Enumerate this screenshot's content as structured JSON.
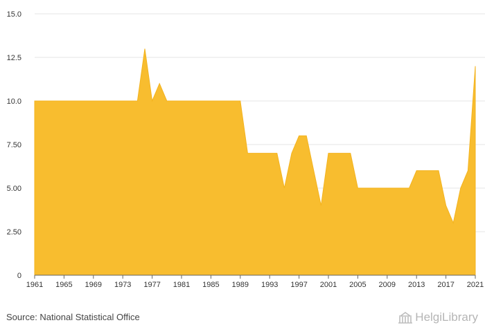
{
  "chart_data": {
    "type": "area",
    "title": "",
    "xlabel": "",
    "ylabel": "",
    "x": [
      1961,
      1962,
      1963,
      1964,
      1965,
      1966,
      1967,
      1968,
      1969,
      1970,
      1971,
      1972,
      1973,
      1974,
      1975,
      1976,
      1977,
      1978,
      1979,
      1980,
      1981,
      1982,
      1983,
      1984,
      1985,
      1986,
      1987,
      1988,
      1989,
      1990,
      1991,
      1992,
      1993,
      1994,
      1995,
      1996,
      1997,
      1998,
      1999,
      2000,
      2001,
      2002,
      2003,
      2004,
      2005,
      2006,
      2007,
      2008,
      2009,
      2010,
      2011,
      2012,
      2013,
      2014,
      2015,
      2016,
      2017,
      2018,
      2019,
      2020,
      2021
    ],
    "series": [
      {
        "name": "Value",
        "values": [
          10,
          10,
          10,
          10,
          10,
          10,
          10,
          10,
          10,
          10,
          10,
          10,
          10,
          10,
          10,
          13,
          10,
          11,
          10,
          10,
          10,
          10,
          10,
          10,
          10,
          10,
          10,
          10,
          10,
          7,
          7,
          7,
          7,
          7,
          5,
          7,
          8,
          8,
          6,
          4,
          7,
          7,
          7,
          7,
          5,
          5,
          5,
          5,
          5,
          5,
          5,
          5,
          6,
          6,
          6,
          6,
          4,
          3,
          5,
          6,
          12
        ],
        "color": "#f8bd2f"
      }
    ],
    "ylim": [
      0,
      15
    ],
    "yticks": [
      0,
      2.5,
      5,
      7.5,
      10,
      12.5,
      15
    ],
    "ytick_labels": [
      "0",
      "2.50",
      "5.00",
      "7.50",
      "10.0",
      "12.5",
      "15.0"
    ],
    "xticks": [
      1961,
      1965,
      1969,
      1973,
      1977,
      1981,
      1985,
      1989,
      1993,
      1997,
      2001,
      2005,
      2009,
      2013,
      2017,
      2021
    ],
    "xtick_labels": [
      "1961",
      "1965",
      "1969",
      "1973",
      "1977",
      "1981",
      "1985",
      "1989",
      "1993",
      "1997",
      "2001",
      "2005",
      "2009",
      "2013",
      "2017",
      "2021"
    ],
    "grid": true
  },
  "footer": {
    "source": "Source: National Statistical Office",
    "brand": "HelgiLibrary"
  }
}
